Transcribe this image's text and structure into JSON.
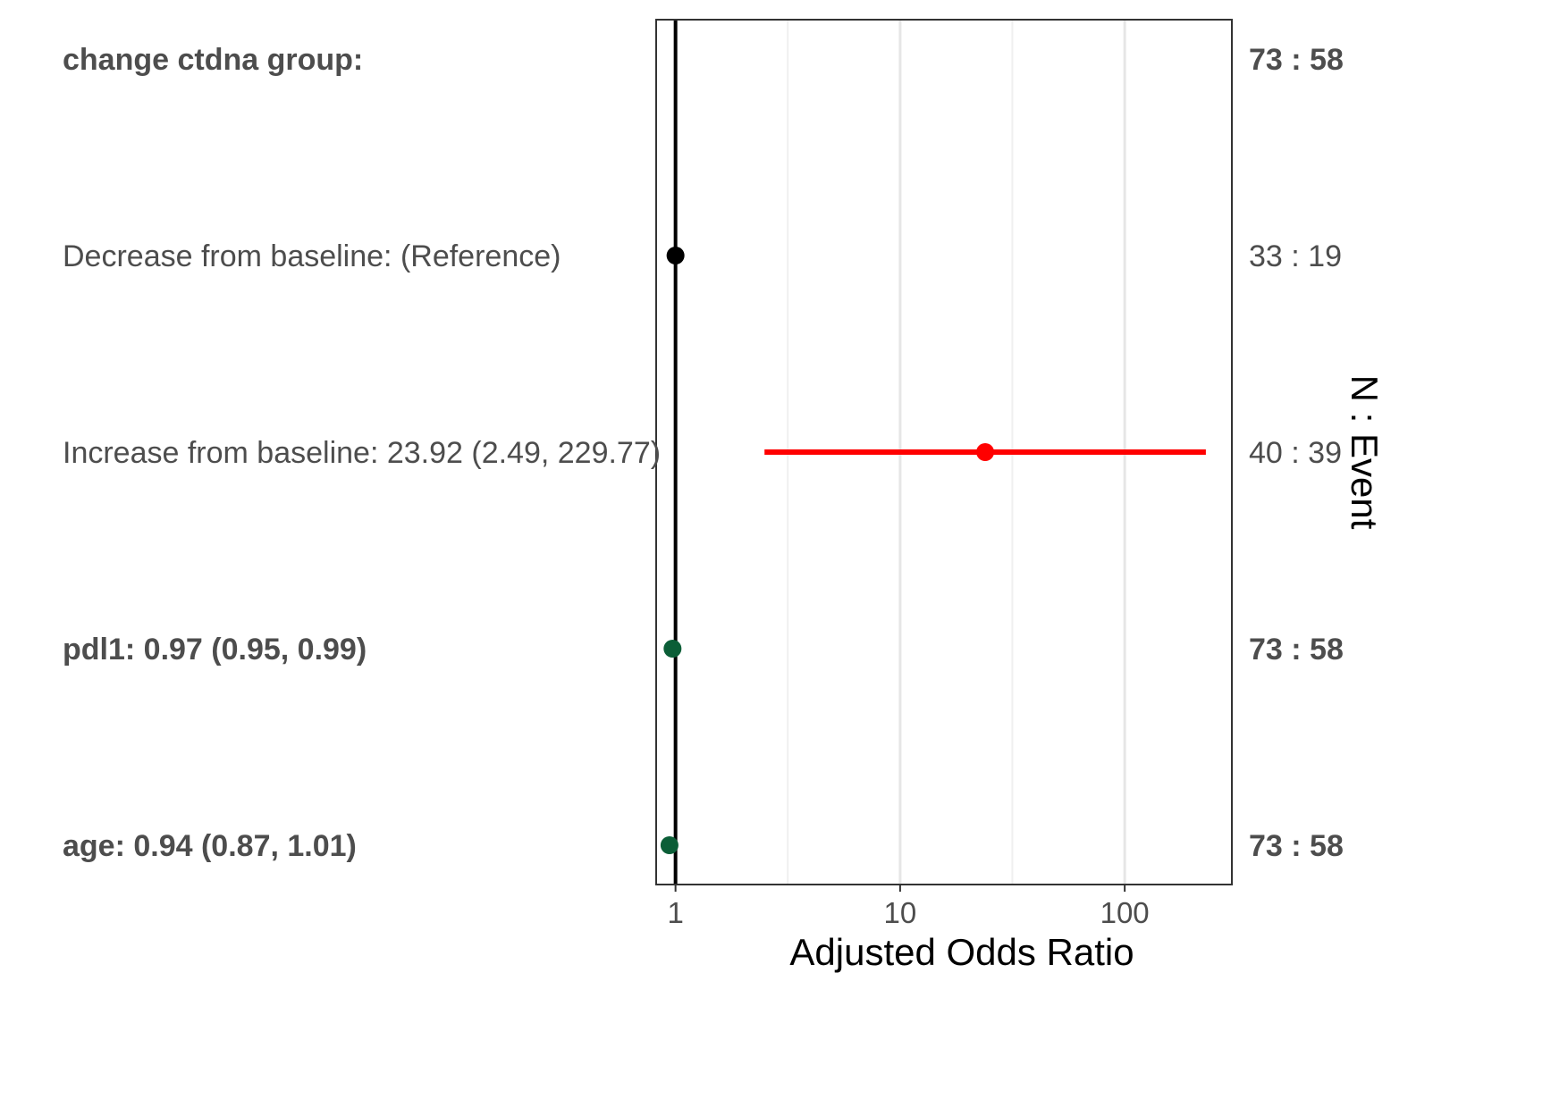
{
  "chart_data": {
    "type": "scatter",
    "subtype": "forest-plot",
    "xlabel": "Adjusted Odds Ratio",
    "secondary_ylabel": "N : Event",
    "x_scale": "log",
    "xlim": [
      0.82,
      300
    ],
    "x_ticks": [
      {
        "value": 1,
        "label": "1"
      },
      {
        "value": 10,
        "label": "10"
      },
      {
        "value": 100,
        "label": "100"
      }
    ],
    "minor_gridlines": [
      3.16,
      31.6
    ],
    "reference_line": 1,
    "grid": true,
    "rows": [
      {
        "label": "change ctdna group:",
        "bold": true,
        "counts": "73 : 58",
        "estimate": null,
        "ci": null,
        "color": null
      },
      {
        "label": "Decrease from baseline: (Reference)",
        "bold": false,
        "counts": "33 : 19",
        "estimate": 1,
        "ci": null,
        "color": "#000000"
      },
      {
        "label": "Increase from baseline: 23.92 (2.49, 229.77)",
        "bold": false,
        "counts": "40 : 39",
        "estimate": 23.92,
        "ci": [
          2.49,
          229.77
        ],
        "color": "#ff0000"
      },
      {
        "label": "pdl1: 0.97 (0.95, 0.99)",
        "bold": true,
        "counts": "73 : 58",
        "estimate": 0.97,
        "ci": [
          0.95,
          0.99
        ],
        "color": "#0b5e37"
      },
      {
        "label": "age: 0.94 (0.87, 1.01)",
        "bold": true,
        "counts": "73 : 58",
        "estimate": 0.94,
        "ci": [
          0.87,
          1.01
        ],
        "color": "#0b5e37"
      }
    ]
  }
}
